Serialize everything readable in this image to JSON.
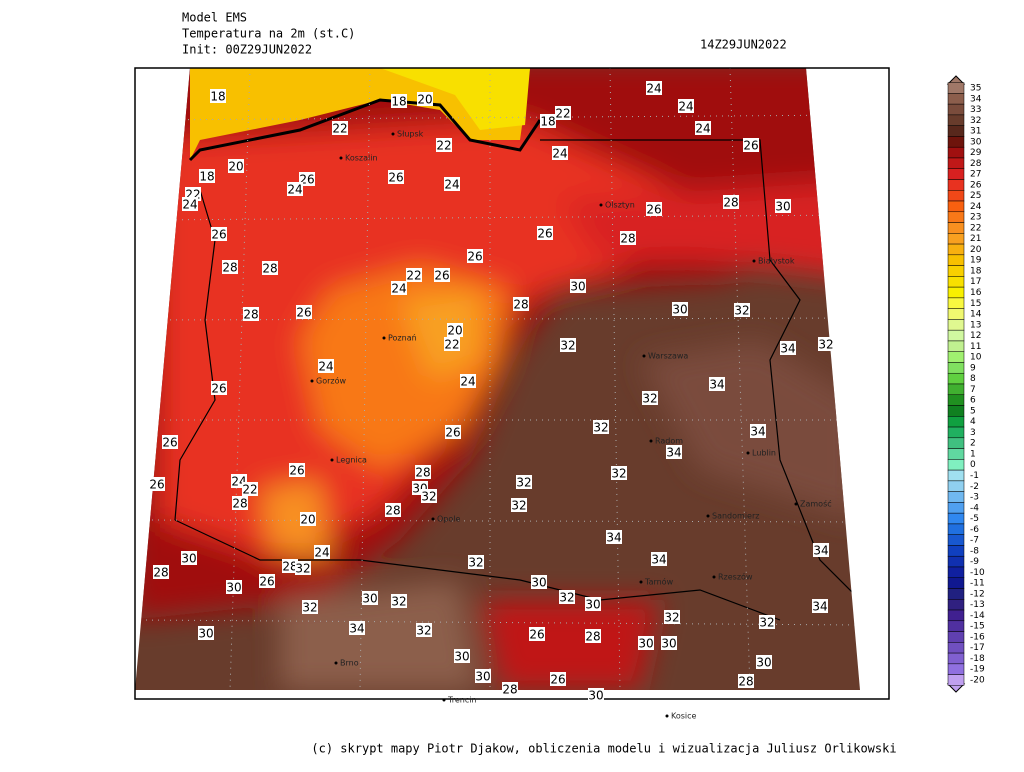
{
  "header": {
    "model": "Model EMS",
    "field": "Temperatura na 2m (st.C)",
    "init": "Init: 00Z29JUN2022",
    "valid": "14Z29JUN2022"
  },
  "legend": {
    "levels": [
      35,
      34,
      33,
      32,
      31,
      30,
      29,
      28,
      27,
      26,
      25,
      24,
      23,
      22,
      21,
      20,
      19,
      18,
      17,
      16,
      15,
      14,
      13,
      12,
      11,
      10,
      9,
      8,
      7,
      6,
      5,
      4,
      3,
      2,
      1,
      0,
      -1,
      -2,
      -3,
      -4,
      -5,
      -6,
      -7,
      -8,
      -9,
      -10,
      -11,
      -12,
      -13,
      -14,
      -15,
      -16,
      -17,
      -18,
      -19,
      -20
    ],
    "colors": [
      "#a07868",
      "#8c5e4c",
      "#7a4c3c",
      "#683c2c",
      "#58281c",
      "#6e140c",
      "#a01010",
      "#c01818",
      "#d82020",
      "#e83220",
      "#f04818",
      "#f86010",
      "#f87818",
      "#f89020",
      "#f8a020",
      "#f8b010",
      "#f8c000",
      "#f8d000",
      "#f8e000",
      "#f8f000",
      "#f8f840",
      "#f0f870",
      "#e0f890",
      "#d0f8a0",
      "#c0f090",
      "#a0f070",
      "#80e060",
      "#60d040",
      "#40b030",
      "#209020",
      "#108020",
      "#10a040",
      "#20b060",
      "#40c080",
      "#60d8a0",
      "#80f0c0",
      "#a0e0f0",
      "#90d0f0",
      "#70b8f0",
      "#50a0f0",
      "#3088f0",
      "#2070e0",
      "#1858d0",
      "#1040c0",
      "#1030b0",
      "#1020a0",
      "#101890",
      "#202080",
      "#302080",
      "#402090",
      "#5030a0",
      "#6040b0",
      "#7050c0",
      "#8060d0",
      "#9070e0",
      "#c0a0f0"
    ]
  },
  "contour_labels": [
    18,
    18,
    20,
    22,
    18,
    24,
    24,
    24,
    26,
    22,
    22,
    24,
    20,
    18,
    26,
    26,
    24,
    24,
    22,
    24,
    26,
    28,
    30,
    26,
    26,
    28,
    28,
    28,
    26,
    22,
    26,
    24,
    30,
    28,
    28,
    26,
    30,
    32,
    20,
    22,
    32,
    34,
    32,
    24,
    24,
    26,
    34,
    32,
    32,
    26,
    34,
    26,
    34,
    26,
    28,
    32,
    24,
    26,
    32,
    22,
    30,
    32,
    28,
    32,
    28,
    20,
    34,
    24,
    30,
    32,
    34,
    34,
    28,
    28,
    32,
    30,
    30,
    26,
    32,
    30,
    32,
    30,
    32,
    34,
    32,
    32,
    34,
    32,
    26,
    28,
    30,
    30,
    30,
    30,
    30,
    30,
    26,
    28,
    28,
    30
  ],
  "cities": [
    "Słupsk",
    "Koszalin",
    "Olsztyn",
    "Białystok",
    "Poznań",
    "Warszawa",
    "Gorzów",
    "Legnica",
    "Radom",
    "Lublin",
    "Opole",
    "Sandomierz",
    "Zamość",
    "Tarnów",
    "Rzeszów",
    "Brno",
    "Trencin",
    "Kosice"
  ],
  "footer": "(c) skrypt mapy Piotr Djakow, obliczenia modelu i wizualizacja Juliusz Orlikowski"
}
